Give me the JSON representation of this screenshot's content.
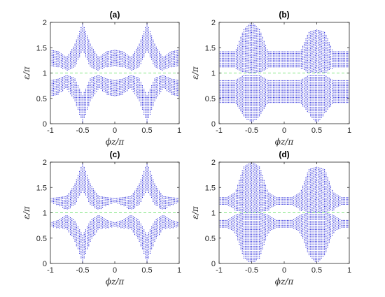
{
  "figure": {
    "colors": {
      "band": "#1f1fd8",
      "axis": "#262626",
      "reference": "#7fe57f"
    }
  },
  "chart_data": [
    {
      "type": "scatter",
      "title": "(a)",
      "xlabel": "ϕz/π",
      "ylabel": "ε/π",
      "xlim": [
        -1,
        1
      ],
      "ylim": [
        0,
        2
      ],
      "xticks": [
        "-1",
        "-0.5",
        "0",
        "0.5",
        "1"
      ],
      "yticks": [
        "0",
        "0.5",
        "1",
        "1.5",
        "2"
      ],
      "reference_line": {
        "y": 1,
        "style": "dashed",
        "color": "#7fe57f"
      },
      "band_edges": {
        "x": [
          -1,
          -0.875,
          -0.75,
          -0.625,
          -0.5,
          -0.375,
          -0.25,
          -0.125,
          0,
          0.125,
          0.25,
          0.375,
          0.5,
          0.625,
          0.75,
          0.875,
          1
        ],
        "upper_top": [
          1.45,
          1.42,
          1.3,
          1.55,
          1.98,
          1.55,
          1.3,
          1.42,
          1.45,
          1.42,
          1.3,
          1.55,
          1.98,
          1.55,
          1.3,
          1.42,
          1.45
        ],
        "upper_bottom": [
          1.15,
          1.12,
          1.05,
          1.1,
          1.45,
          1.1,
          1.05,
          1.12,
          1.15,
          1.12,
          1.05,
          1.1,
          1.45,
          1.1,
          1.05,
          1.12,
          1.15
        ],
        "lower_top": [
          0.85,
          0.88,
          0.95,
          0.9,
          0.55,
          0.9,
          0.95,
          0.88,
          0.85,
          0.88,
          0.95,
          0.9,
          0.55,
          0.9,
          0.95,
          0.88,
          0.85
        ],
        "lower_bottom": [
          0.55,
          0.58,
          0.7,
          0.45,
          0.02,
          0.45,
          0.7,
          0.58,
          0.55,
          0.58,
          0.7,
          0.45,
          0.02,
          0.45,
          0.7,
          0.58,
          0.55
        ]
      }
    },
    {
      "type": "scatter",
      "title": "(b)",
      "xlabel": "ϕz/π",
      "ylabel": "ε/π",
      "xlim": [
        -1,
        1
      ],
      "ylim": [
        0,
        2
      ],
      "xticks": [
        "-1",
        "-0.5",
        "0",
        "0.5",
        "1"
      ],
      "yticks": [
        "0",
        "0.5",
        "1",
        "1.5",
        "2"
      ],
      "reference_line": {
        "y": 1,
        "style": "dashed",
        "color": "#7fe57f"
      },
      "band_edges": {
        "x": [
          -1,
          -0.875,
          -0.75,
          -0.625,
          -0.5,
          -0.375,
          -0.25,
          -0.125,
          0,
          0.125,
          0.25,
          0.375,
          0.5,
          0.625,
          0.75,
          0.875,
          1
        ],
        "upper_top": [
          1.42,
          1.42,
          1.42,
          1.85,
          2.0,
          1.85,
          1.42,
          1.42,
          1.42,
          1.42,
          1.42,
          1.8,
          1.85,
          1.8,
          1.42,
          1.42,
          1.42
        ],
        "upper_bottom": [
          1.1,
          1.1,
          1.1,
          1.0,
          1.0,
          1.0,
          1.1,
          1.1,
          1.1,
          1.1,
          1.1,
          1.0,
          1.0,
          1.0,
          1.1,
          1.1,
          1.1
        ],
        "lower_top": [
          0.85,
          0.85,
          0.85,
          0.95,
          0.95,
          0.95,
          0.85,
          0.85,
          0.85,
          0.85,
          0.85,
          0.95,
          0.95,
          0.95,
          0.85,
          0.85,
          0.85
        ],
        "lower_bottom": [
          0.4,
          0.4,
          0.4,
          0.15,
          0.0,
          0.15,
          0.4,
          0.4,
          0.4,
          0.4,
          0.4,
          0.2,
          0.0,
          0.2,
          0.4,
          0.4,
          0.4
        ]
      }
    },
    {
      "type": "scatter",
      "title": "(c)",
      "xlabel": "ϕz/π",
      "ylabel": "ε/π",
      "xlim": [
        -1,
        1
      ],
      "ylim": [
        0,
        2
      ],
      "xticks": [
        "-1",
        "-0.5",
        "0",
        "0.5",
        "1"
      ],
      "yticks": [
        "0",
        "0.5",
        "1",
        "1.5",
        "2"
      ],
      "reference_line": {
        "y": 1,
        "style": "dashed",
        "color": "#7fe57f"
      },
      "band_edges": {
        "x": [
          -1,
          -0.875,
          -0.75,
          -0.625,
          -0.5,
          -0.375,
          -0.25,
          -0.125,
          0,
          0.125,
          0.25,
          0.375,
          0.5,
          0.625,
          0.75,
          0.875,
          1
        ],
        "upper_top": [
          1.28,
          1.3,
          1.32,
          1.55,
          1.98,
          1.55,
          1.32,
          1.3,
          1.28,
          1.3,
          1.32,
          1.55,
          1.98,
          1.55,
          1.32,
          1.3,
          1.28
        ],
        "upper_bottom": [
          1.2,
          1.15,
          1.05,
          1.15,
          1.45,
          1.15,
          1.05,
          1.15,
          1.2,
          1.15,
          1.05,
          1.15,
          1.45,
          1.15,
          1.05,
          1.15,
          1.2
        ],
        "lower_top": [
          0.8,
          0.85,
          0.95,
          0.85,
          0.55,
          0.85,
          0.95,
          0.85,
          0.8,
          0.85,
          0.95,
          0.85,
          0.55,
          0.85,
          0.95,
          0.85,
          0.8
        ],
        "lower_bottom": [
          0.72,
          0.7,
          0.68,
          0.45,
          0.02,
          0.45,
          0.68,
          0.7,
          0.72,
          0.7,
          0.68,
          0.45,
          0.02,
          0.45,
          0.68,
          0.7,
          0.72
        ]
      }
    },
    {
      "type": "scatter",
      "title": "(d)",
      "xlabel": "ϕz/π",
      "ylabel": "ε/π",
      "xlim": [
        -1,
        1
      ],
      "ylim": [
        0,
        2
      ],
      "xticks": [
        "-1",
        "-0.5",
        "0",
        "0.5",
        "1"
      ],
      "yticks": [
        "0",
        "0.5",
        "1",
        "1.5",
        "2"
      ],
      "reference_line": {
        "y": 1,
        "style": "dashed",
        "color": "#7fe57f"
      },
      "band_edges": {
        "x": [
          -1,
          -0.875,
          -0.75,
          -0.625,
          -0.5,
          -0.375,
          -0.25,
          -0.125,
          0,
          0.125,
          0.25,
          0.375,
          0.5,
          0.625,
          0.75,
          0.875,
          1
        ],
        "upper_top": [
          1.3,
          1.3,
          1.4,
          1.9,
          2.0,
          1.9,
          1.4,
          1.3,
          1.3,
          1.3,
          1.4,
          1.85,
          1.9,
          1.85,
          1.4,
          1.3,
          1.3
        ],
        "upper_bottom": [
          1.15,
          1.15,
          1.05,
          1.0,
          1.0,
          1.0,
          1.05,
          1.15,
          1.15,
          1.15,
          1.05,
          1.0,
          1.0,
          1.0,
          1.05,
          1.15,
          1.15
        ],
        "lower_top": [
          0.85,
          0.85,
          0.95,
          1.0,
          1.0,
          1.0,
          0.95,
          0.85,
          0.85,
          0.85,
          0.95,
          1.0,
          1.0,
          1.0,
          0.95,
          0.85,
          0.85
        ],
        "lower_bottom": [
          0.7,
          0.7,
          0.6,
          0.1,
          0.0,
          0.1,
          0.6,
          0.7,
          0.7,
          0.7,
          0.6,
          0.15,
          0.0,
          0.15,
          0.6,
          0.7,
          0.7
        ]
      }
    }
  ]
}
